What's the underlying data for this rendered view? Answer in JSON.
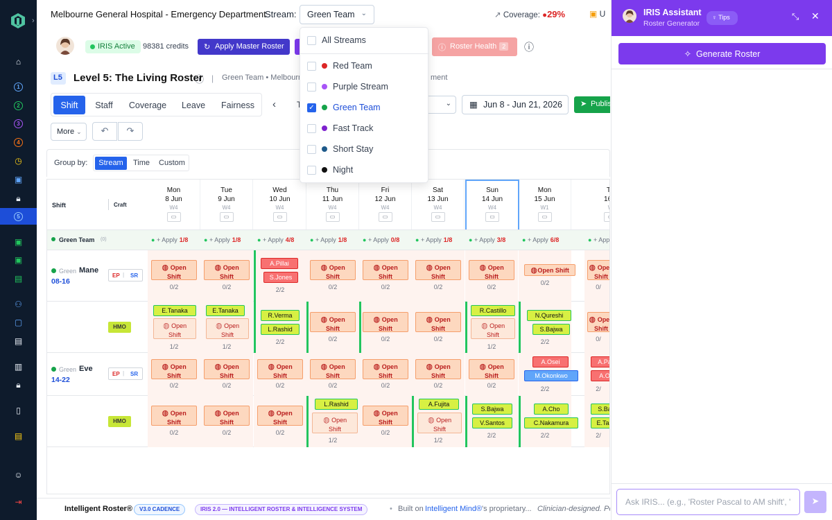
{
  "header": {
    "hospital": "Melbourne General Hospital - Emergency Department",
    "stream_label": "Stream:",
    "stream_value": "Green Team",
    "coverage_label": "Coverage:",
    "coverage_value": "29%",
    "next_label": "U"
  },
  "toolbar": {
    "iris_status": "IRIS Active",
    "credits": "98381 credits",
    "apply_master": "Apply Master Roster",
    "roster_health": "Roster Health",
    "roster_health_count": "2"
  },
  "page": {
    "level_badge": "L5",
    "title": "Level 5: The Living Roster",
    "breadcrumb_a": "Green Team • Melbourn",
    "breadcrumb_b": "ment"
  },
  "tabs": [
    "Shift",
    "Staff",
    "Coverage",
    "Leave",
    "Fairness"
  ],
  "nav": {
    "truncated": "T"
  },
  "date_range": "Jun 8 - Jun 21, 2026",
  "publish_label": "Publis",
  "more_label": "More",
  "group_by": {
    "label": "Group by:",
    "options": [
      "Stream",
      "Time",
      "Custom"
    ]
  },
  "grid": {
    "col_shift": "Shift",
    "col_craft": "Craft",
    "days": [
      {
        "dow": "Mon",
        "date": "8 Jun",
        "wk": "W4"
      },
      {
        "dow": "Tue",
        "date": "9 Jun",
        "wk": "W4"
      },
      {
        "dow": "Wed",
        "date": "10 Jun",
        "wk": "W4"
      },
      {
        "dow": "Thu",
        "date": "11 Jun",
        "wk": "W4"
      },
      {
        "dow": "Fri",
        "date": "12 Jun",
        "wk": "W4"
      },
      {
        "dow": "Sat",
        "date": "13 Jun",
        "wk": "W4"
      },
      {
        "dow": "Sun",
        "date": "14 Jun",
        "wk": "W4"
      },
      {
        "dow": "Mon",
        "date": "15 Jun",
        "wk": "W1"
      },
      {
        "dow": "Tu",
        "date": "16 J",
        "wk": "W"
      }
    ],
    "team_name": "Green Team",
    "team_count": "(0)",
    "apply_label": "+ Apply",
    "apply_ratios": [
      "1/8",
      "1/8",
      "4/8",
      "1/8",
      "0/8",
      "1/8",
      "3/8",
      "6/8",
      ""
    ],
    "rows": [
      {
        "stream": "Green",
        "name": "Mane",
        "time": "08-16",
        "tags": [
          "EP",
          "SR"
        ]
      },
      {
        "tag": "HMO"
      },
      {
        "stream": "Green",
        "name": "Eve",
        "time": "14-22",
        "tags": [
          "EP",
          "SR"
        ]
      },
      {
        "tag": "HMO"
      }
    ],
    "open_label_1": "Open",
    "open_label_2": "Shift",
    "open_shift_inline": "Open Shift",
    "staff": {
      "pillai": "A.Pillai",
      "jones": "S.Jones",
      "tanaka": "E.Tanaka",
      "verma": "R.Verma",
      "rashid": "L.Rashid",
      "castillo": "R.Castillo",
      "qureshi": "N.Qureshi",
      "bajwa": "S.Bajwa",
      "osei": "A.Osei",
      "okonkwo": "M.Okonkwo",
      "pa": "A.Pa",
      "ao": "A.O",
      "fujita": "A.Fujita",
      "santos": "V.Santos",
      "cho": "A.Cho",
      "nakamura": "C.Nakamura",
      "sba": "S.Ba",
      "etan": "E.Tan"
    },
    "ratios": {
      "r02": "0/2",
      "r12": "1/2",
      "r22": "2/2",
      "r0": "0/",
      "r2": "2/"
    }
  },
  "stream_dropdown": {
    "items": [
      {
        "label": "All Streams",
        "color": "",
        "checked": false
      },
      {
        "label": "Red Team",
        "color": "#dc2626",
        "checked": false
      },
      {
        "label": "Purple Stream",
        "color": "#a855f7",
        "checked": false
      },
      {
        "label": "Green Team",
        "color": "#16a34a",
        "checked": true
      },
      {
        "label": "Fast Track",
        "color": "#7e22ce",
        "checked": false
      },
      {
        "label": "Short Stay",
        "color": "#1e5a8a",
        "checked": false
      },
      {
        "label": "Night",
        "color": "#111111",
        "checked": false
      }
    ]
  },
  "iris": {
    "title": "IRIS Assistant",
    "subtitle": "Roster Generator",
    "tips": "Tips",
    "generate": "Generate Roster",
    "ask_placeholder": "Ask IRIS... (e.g., 'Roster Pascal to AM shift', '"
  },
  "footer": {
    "brand": "Intelligent Roster®",
    "chip1": "V3.0 CADENCE",
    "chip2": "IRIS 2.0 — INTELLIGENT ROSTER & INTELLIGENCE SYSTEM",
    "built_on": "Built on",
    "mind": "Intelligent Mind®",
    "prop": "'s proprietary...",
    "clinician": "Clinician-designed. Po"
  },
  "colors": {
    "rail": "#0e1b2c",
    "primary": "#2563eb",
    "iris": "#7c3aed",
    "open": "#fdd8bf",
    "green": "#22c55e"
  }
}
